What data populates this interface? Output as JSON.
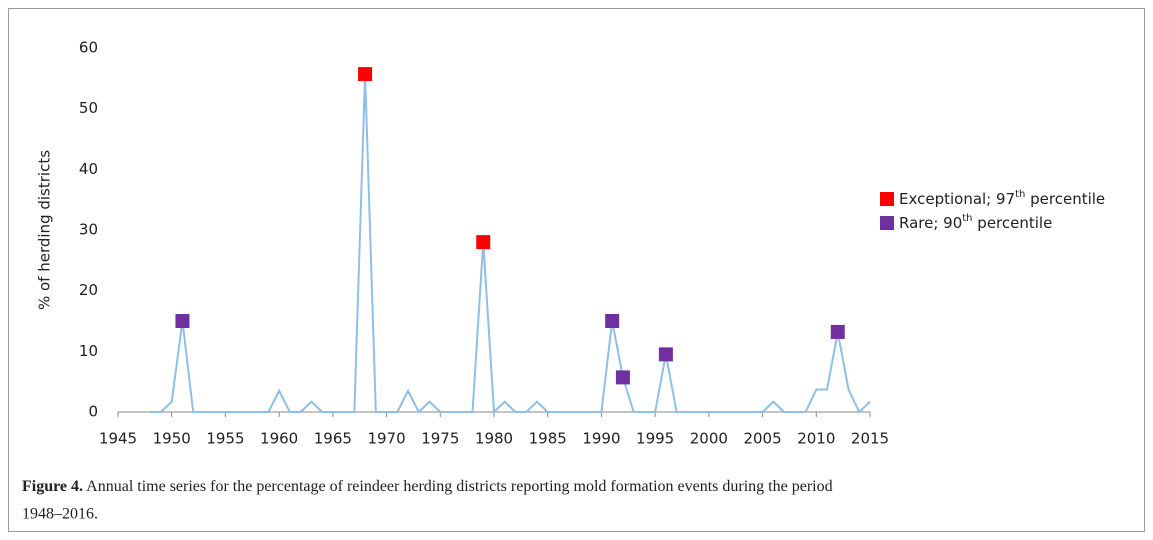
{
  "chart_data": {
    "type": "line",
    "ylabel": "% of herding districts",
    "xlim": [
      1945,
      2015
    ],
    "xticks": [
      1945,
      1950,
      1955,
      1960,
      1965,
      1970,
      1975,
      1980,
      1985,
      1990,
      1995,
      2000,
      2005,
      2010,
      2015
    ],
    "ylim": [
      0,
      60
    ],
    "yticks": [
      0,
      10,
      20,
      30,
      40,
      50,
      60
    ],
    "grid": false,
    "line": {
      "color": "#8fbfe6",
      "x": [
        1948,
        1949,
        1950,
        1951,
        1952,
        1953,
        1954,
        1955,
        1956,
        1957,
        1958,
        1959,
        1960,
        1961,
        1962,
        1963,
        1964,
        1965,
        1966,
        1967,
        1968,
        1969,
        1970,
        1971,
        1972,
        1973,
        1974,
        1975,
        1976,
        1977,
        1978,
        1979,
        1980,
        1981,
        1982,
        1983,
        1984,
        1985,
        1986,
        1987,
        1988,
        1989,
        1990,
        1991,
        1992,
        1993,
        1994,
        1995,
        1996,
        1997,
        1998,
        1999,
        2000,
        2001,
        2002,
        2003,
        2004,
        2005,
        2006,
        2007,
        2008,
        2009,
        2010,
        2011,
        2012,
        2013,
        2014,
        2015
      ],
      "values": [
        0,
        0,
        1.7,
        15,
        0,
        0,
        0,
        0,
        0,
        0,
        0,
        0,
        3.5,
        0,
        0,
        1.7,
        0,
        0,
        0,
        0,
        55.7,
        0,
        0,
        0,
        3.5,
        0,
        1.7,
        0,
        0,
        0,
        0,
        28,
        0,
        1.7,
        0,
        0,
        1.7,
        0,
        0,
        0,
        0,
        0,
        0,
        15,
        5.7,
        0,
        0,
        0,
        9.5,
        0,
        0,
        0,
        0,
        0,
        0,
        0,
        0,
        0,
        1.7,
        0,
        0,
        0,
        3.7,
        3.7,
        13.2,
        3.7,
        0,
        1.7
      ]
    },
    "series": [
      {
        "name_parts": [
          "Exceptional; 97",
          "th",
          " percentile"
        ],
        "color": "#ff0000",
        "x": [
          1968,
          1979
        ],
        "values": [
          55.7,
          28
        ]
      },
      {
        "name_parts": [
          "Rare; 90",
          "th",
          " percentile"
        ],
        "color": "#7030a0",
        "x": [
          1951,
          1991,
          1992,
          1996,
          2012
        ],
        "values": [
          15,
          15,
          5.7,
          9.5,
          13.2
        ]
      }
    ],
    "legend": "right"
  },
  "caption": {
    "label": "Figure 4.",
    "text": "Annual time series for the percentage of reindeer herding districts reporting mold formation events during the period",
    "text2": "1948–2016."
  }
}
